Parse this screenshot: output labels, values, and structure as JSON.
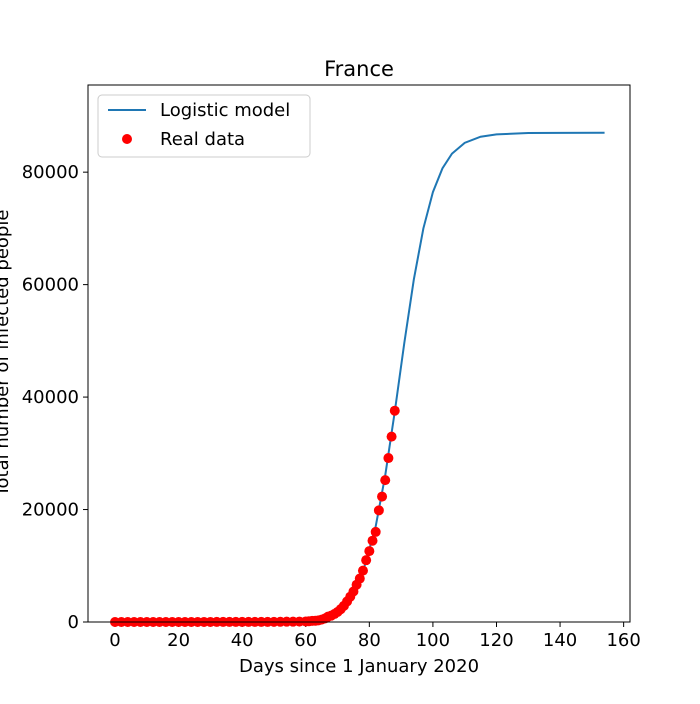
{
  "chart_data": {
    "type": "line",
    "title": "France",
    "x_label": "Days since 1 January 2020",
    "y_label": "Total number of infected people",
    "xlim": [
      -8.5,
      162
    ],
    "ylim": [
      0,
      95500
    ],
    "xticks": [
      0,
      20,
      40,
      60,
      80,
      100,
      120,
      140,
      160
    ],
    "yticks": [
      0,
      20000,
      40000,
      60000,
      80000
    ],
    "legend": "upper left",
    "series": [
      {
        "name": "Logistic model",
        "color": "#1f77b4",
        "type": "line",
        "x": [
          -1,
          20,
          40,
          55,
          60,
          65,
          70,
          74,
          78,
          82,
          85,
          88,
          91,
          94,
          97,
          100,
          103,
          106,
          110,
          115,
          120,
          130,
          140,
          154
        ],
        "values": [
          0,
          0,
          8,
          129,
          332,
          846,
          2143,
          4432,
          8914,
          16992,
          26064,
          37388,
          49615,
          60924,
          69992,
          76450,
          80683,
          83294,
          85219,
          86298,
          86725,
          86958,
          86994,
          87000
        ]
      },
      {
        "name": "Real data",
        "color": "#ff0000",
        "type": "scatter",
        "x": [
          0,
          2,
          4,
          6,
          8,
          10,
          12,
          14,
          16,
          18,
          20,
          22,
          24,
          26,
          28,
          30,
          32,
          34,
          36,
          38,
          40,
          42,
          44,
          46,
          48,
          50,
          52,
          54,
          56,
          58,
          60,
          61,
          62,
          63,
          64,
          65,
          66,
          67,
          68,
          69,
          70,
          71,
          72,
          73,
          74,
          75,
          76,
          77,
          78,
          79,
          80,
          81,
          82,
          83,
          84,
          85,
          86,
          87,
          88
        ],
        "values": [
          0,
          0,
          0,
          0,
          0,
          0,
          0,
          0,
          0,
          0,
          0,
          0,
          3,
          6,
          6,
          11,
          12,
          12,
          12,
          12,
          12,
          12,
          12,
          12,
          14,
          18,
          38,
          57,
          57,
          73,
          100,
          130,
          191,
          212,
          285,
          423,
          613,
          949,
          1126,
          1412,
          1784,
          2281,
          2876,
          3661,
          4499,
          5423,
          6633,
          7730,
          9134,
          10995,
          12612,
          14459,
          16018,
          19856,
          22302,
          25233,
          29155,
          32964,
          37575
        ]
      }
    ]
  }
}
